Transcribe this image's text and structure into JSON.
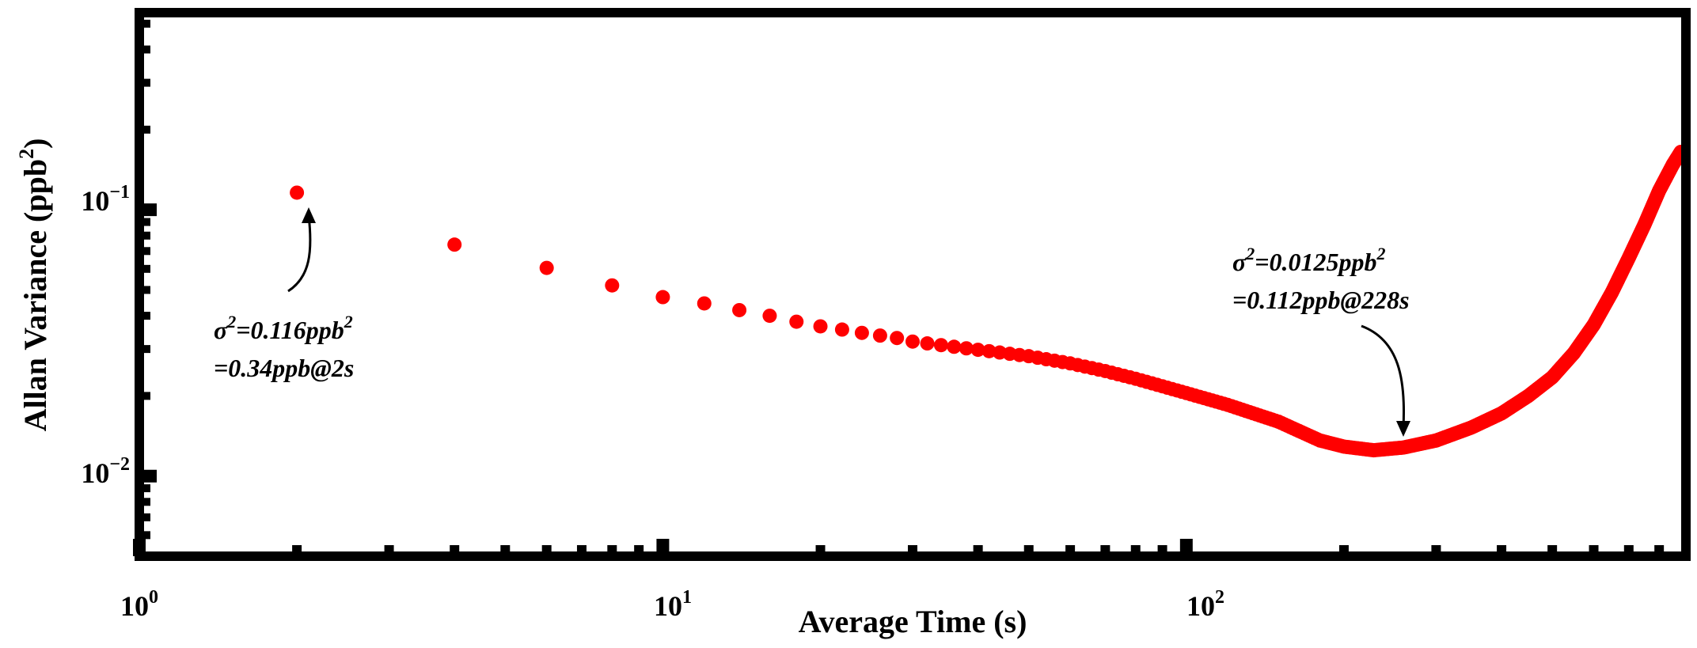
{
  "chart_data": {
    "type": "scatter",
    "title": "",
    "xlabel": "Average Time (s)",
    "ylabel": {
      "main": "Allan Variance (ppb",
      "sup": "2",
      "close": ")"
    },
    "xscale": "log",
    "yscale": "log",
    "xlim": [
      1,
      900
    ],
    "ylim": [
      0.005,
      0.55
    ],
    "x_ticks": [
      {
        "base": "10",
        "exp": "0",
        "value": 1
      },
      {
        "base": "10",
        "exp": "1",
        "value": 10
      },
      {
        "base": "10",
        "exp": "2",
        "value": 100
      }
    ],
    "y_ticks": [
      {
        "base": "10",
        "exp": "−1",
        "value": 0.1
      },
      {
        "base": "10",
        "exp": "−2",
        "value": 0.01
      }
    ],
    "marker_color": "#ff0000",
    "series": [
      {
        "name": "Allan variance",
        "x": [
          2,
          4,
          6,
          8,
          10,
          12,
          14,
          16,
          18,
          20,
          22,
          24,
          26,
          28,
          30,
          35,
          40,
          50,
          60,
          70,
          80,
          100,
          120,
          150,
          180,
          200,
          228,
          260,
          300,
          350,
          400,
          450,
          500,
          550,
          600,
          650,
          700,
          750,
          800,
          850,
          880
        ],
        "y": [
          0.116,
          0.074,
          0.0605,
          0.052,
          0.047,
          0.0445,
          0.042,
          0.04,
          0.038,
          0.0365,
          0.0355,
          0.0345,
          0.0337,
          0.033,
          0.032,
          0.0308,
          0.0298,
          0.0282,
          0.0265,
          0.0248,
          0.0232,
          0.0205,
          0.0185,
          0.016,
          0.0136,
          0.0129,
          0.0125,
          0.0128,
          0.0136,
          0.0152,
          0.0172,
          0.02,
          0.0235,
          0.029,
          0.037,
          0.049,
          0.066,
          0.088,
          0.118,
          0.148,
          0.165
        ]
      }
    ],
    "annotations": [
      {
        "line1_pre": "σ",
        "line1_sup": "2",
        "line1_mid": "=0.116ppb",
        "line1_sup2": "2",
        "line2": "=0.34ppb@2s",
        "x": 2,
        "y": 0.116
      },
      {
        "line1_pre": "σ",
        "line1_sup": "2",
        "line1_mid": "=0.0125ppb",
        "line1_sup2": "2",
        "line2": "=0.112ppb@228s",
        "x": 228,
        "y": 0.0125
      }
    ]
  }
}
